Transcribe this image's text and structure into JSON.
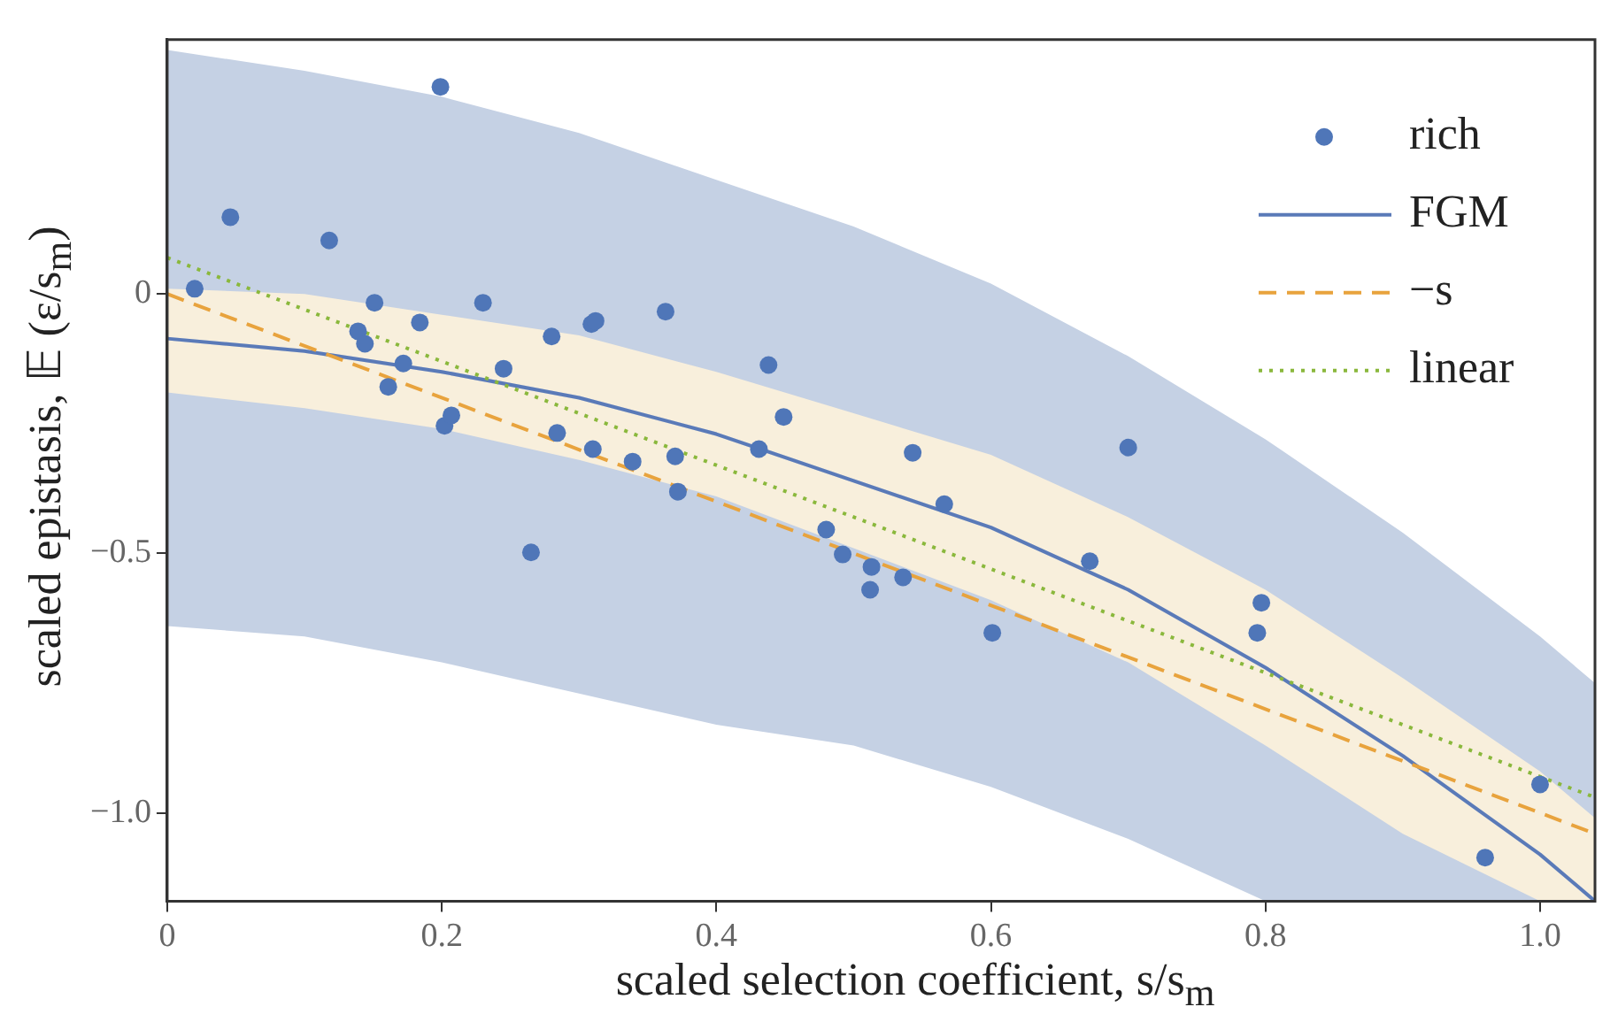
{
  "chart_data": {
    "type": "scatter",
    "xlabel": "scaled selection coefficient, s/s$_{m}$",
    "ylabel": "scaled epistasis, 𝔼 (ε/s$_{m}$)",
    "xlim": [
      0,
      1.04
    ],
    "ylim": [
      -1.17,
      0.49
    ],
    "xticks": [
      0,
      0.2,
      0.4,
      0.6,
      0.8,
      {
        "value": 1,
        "label": "1.0"
      }
    ],
    "yticks": [
      {
        "value": -1,
        "label": "−1.0"
      },
      {
        "value": -0.5,
        "label": "−0.5"
      },
      0
    ],
    "grid": false,
    "legend": "top right",
    "series": [
      {
        "type": "line",
        "color": "#c5d1e4",
        "marker": "none",
        "x": [
          0,
          0.1,
          0.2,
          0.3,
          0.4,
          0.5,
          0.6,
          0.7,
          0.8,
          0.9,
          1.0,
          1.04
        ],
        "values": [
          -0.086,
          -0.11,
          -0.15,
          -0.2,
          -0.27,
          -0.36,
          -0.45,
          -0.57,
          -0.72,
          -0.89,
          -1.08,
          -1.17
        ],
        "lower": [
          -0.64,
          -0.66,
          -0.71,
          -0.77,
          -0.83,
          -0.87,
          -0.95,
          -1.05,
          -1.17,
          -1.17,
          -1.17,
          -1.17
        ],
        "upper": [
          0.47,
          0.43,
          0.38,
          0.31,
          0.22,
          0.13,
          0.02,
          -0.12,
          -0.28,
          -0.46,
          -0.66,
          -0.75
        ]
      },
      {
        "type": "line",
        "color": "#f8efdc",
        "marker": "none",
        "x": [
          0,
          0.1,
          0.2,
          0.3,
          0.4,
          0.5,
          0.6,
          0.7,
          0.8,
          0.9,
          1.0,
          1.04
        ],
        "values": [
          -0.086,
          -0.11,
          -0.15,
          -0.2,
          -0.27,
          -0.36,
          -0.45,
          -0.57,
          -0.72,
          -0.89,
          -1.08,
          -1.17
        ],
        "lower": [
          -0.19,
          -0.22,
          -0.26,
          -0.32,
          -0.39,
          -0.49,
          -0.59,
          -0.71,
          -0.87,
          -1.04,
          -1.17,
          -1.17
        ],
        "upper": [
          0.01,
          0.0,
          -0.04,
          -0.08,
          -0.15,
          -0.23,
          -0.31,
          -0.43,
          -0.57,
          -0.74,
          -0.92,
          -1.01
        ]
      },
      {
        "name": "rich",
        "color": "#4f76b8",
        "marker": "circle",
        "x": [
          0.02,
          0.046,
          0.118,
          0.199,
          0.151,
          0.139,
          0.144,
          0.184,
          0.172,
          0.161,
          0.202,
          0.207,
          0.23,
          0.245,
          0.28,
          0.309,
          0.312,
          0.284,
          0.31,
          0.339,
          0.363,
          0.37,
          0.372,
          0.265,
          0.438,
          0.449,
          0.431,
          0.48,
          0.492,
          0.512,
          0.513,
          0.536,
          0.566,
          0.543,
          0.7,
          0.672,
          0.601,
          0.797,
          0.794,
          0.96,
          1.0
        ],
        "values": [
          0.01,
          0.148,
          0.103,
          0.399,
          -0.017,
          -0.072,
          -0.096,
          -0.055,
          -0.134,
          -0.179,
          -0.254,
          -0.234,
          -0.017,
          -0.144,
          -0.082,
          -0.058,
          -0.052,
          -0.268,
          -0.299,
          -0.323,
          -0.034,
          -0.313,
          -0.381,
          -0.498,
          -0.137,
          -0.237,
          -0.299,
          -0.454,
          -0.502,
          -0.57,
          -0.526,
          -0.546,
          -0.405,
          -0.306,
          -0.296,
          -0.515,
          -0.653,
          -0.595,
          -0.653,
          -1.086,
          -0.945
        ]
      },
      {
        "name": "FGM",
        "type": "line",
        "color": "#5a7ab8",
        "marker": "none",
        "line_style": "solid",
        "x": [
          0,
          0.1,
          0.2,
          0.3,
          0.4,
          0.5,
          0.6,
          0.7,
          0.8,
          0.9,
          1.0,
          1.04
        ],
        "values": [
          -0.086,
          -0.11,
          -0.15,
          -0.2,
          -0.27,
          -0.36,
          -0.45,
          -0.57,
          -0.72,
          -0.89,
          -1.08,
          -1.17
        ]
      },
      {
        "name": "−s",
        "type": "line",
        "color": "#e8a33d",
        "marker": "none",
        "line_style": "dashed",
        "x": [
          0,
          1.04
        ],
        "values": [
          0,
          -1.04
        ]
      },
      {
        "name": "linear",
        "type": "line",
        "color": "#8ab83c",
        "marker": "none",
        "line_style": "dotted",
        "x": [
          0,
          1.04
        ],
        "values": [
          0.07,
          -0.97
        ]
      }
    ]
  }
}
